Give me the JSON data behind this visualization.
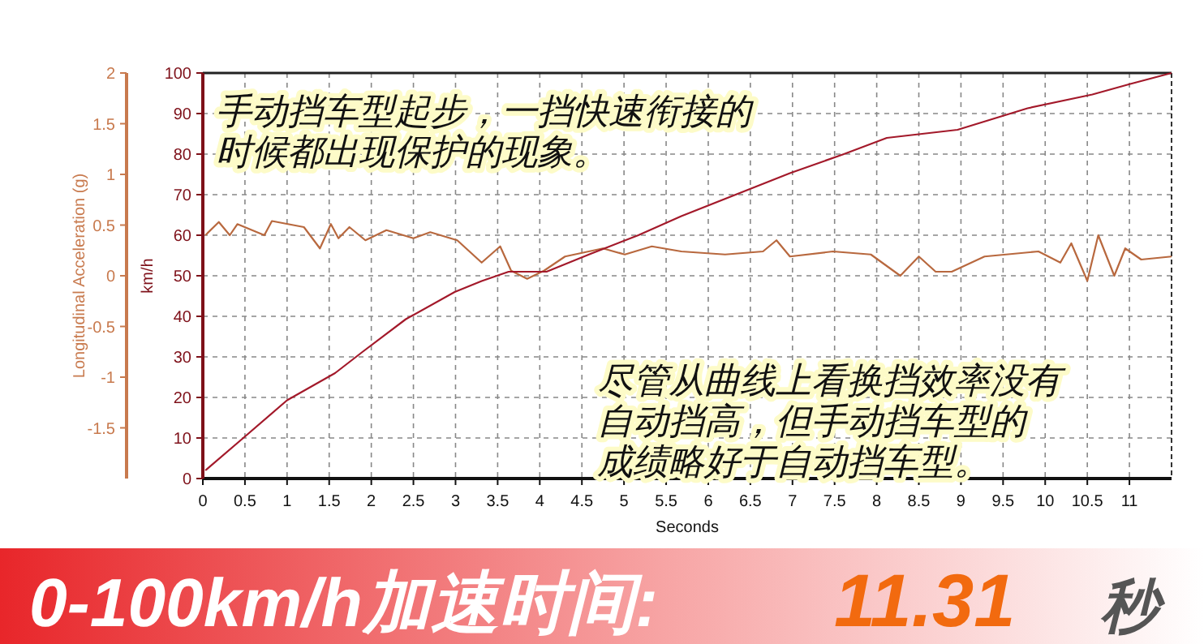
{
  "chart_data": {
    "type": "line",
    "xlabel": "Seconds",
    "ylabel": "Longitudinal Acceleration (g)",
    "y2label": "km/h",
    "xlim": [
      0,
      11.5
    ],
    "xticks": [
      0,
      0.5,
      1,
      1.5,
      2,
      2.5,
      3,
      3.5,
      4,
      4.5,
      5,
      5.5,
      6,
      6.5,
      7,
      7.5,
      8,
      8.5,
      9,
      9.5,
      10,
      10.5,
      11
    ],
    "ylim": [
      -2,
      2
    ],
    "yticks": [
      2,
      1.5,
      1,
      0.5,
      0,
      -0.5,
      -1,
      -1.5
    ],
    "y2lim": [
      0,
      100
    ],
    "y2ticks": [
      0,
      10,
      20,
      30,
      40,
      50,
      60,
      70,
      80,
      90,
      100
    ],
    "grid": true,
    "marker": "none",
    "line_style": "solid",
    "series": [
      {
        "color": "#b8683e",
        "axis": "y",
        "x": [
          0.03,
          0.19,
          0.32,
          0.41,
          0.73,
          0.82,
          1.2,
          1.39,
          1.52,
          1.61,
          1.74,
          1.93,
          2.18,
          2.5,
          2.7,
          3.02,
          3.31,
          3.53,
          3.66,
          3.85,
          4.05,
          4.3,
          4.75,
          5.01,
          5.33,
          5.68,
          6.2,
          6.65,
          6.81,
          6.97,
          7.48,
          7.93,
          8.28,
          8.5,
          8.7,
          8.89,
          9.28,
          9.92,
          10.18,
          10.31,
          10.5,
          10.63,
          10.82,
          10.95,
          11.14,
          11.5
        ],
        "values": [
          0.4,
          0.53,
          0.4,
          0.51,
          0.4,
          0.54,
          0.48,
          0.27,
          0.51,
          0.37,
          0.48,
          0.35,
          0.45,
          0.37,
          0.43,
          0.35,
          0.13,
          0.29,
          0.05,
          -0.03,
          0.05,
          0.19,
          0.27,
          0.21,
          0.29,
          0.24,
          0.21,
          0.24,
          0.35,
          0.19,
          0.24,
          0.21,
          0,
          0.19,
          0.04,
          0.04,
          0.19,
          0.24,
          0.13,
          0.32,
          -0.05,
          0.4,
          0,
          0.27,
          0.16,
          0.19
        ]
      },
      {
        "color": "#a3192a",
        "axis": "y2",
        "x": [
          0.03,
          0.48,
          1.0,
          1.57,
          1.9,
          2.41,
          2.99,
          3.31,
          3.63,
          4.08,
          4.59,
          5.17,
          5.68,
          6.97,
          7.61,
          8.12,
          8.96,
          9.79,
          10.56,
          11.01,
          11.5
        ],
        "values": [
          2,
          10,
          19.3,
          26,
          31.3,
          39.3,
          46,
          48.7,
          51,
          51,
          55.3,
          60,
          64.7,
          75.3,
          80,
          84,
          86,
          91.3,
          94.7,
          97.3,
          100
        ]
      }
    ],
    "annotations": [
      "手动挡车型起步，一挡快速衔接的",
      "时候都出现保护的现象。",
      "尽管从曲线上看换挡效率没有",
      "自动挡高，但手动挡车型的",
      "成绩略好于自动挡车型。",
      "0-100km/h加速时间:",
      "11.31",
      "秒"
    ]
  }
}
